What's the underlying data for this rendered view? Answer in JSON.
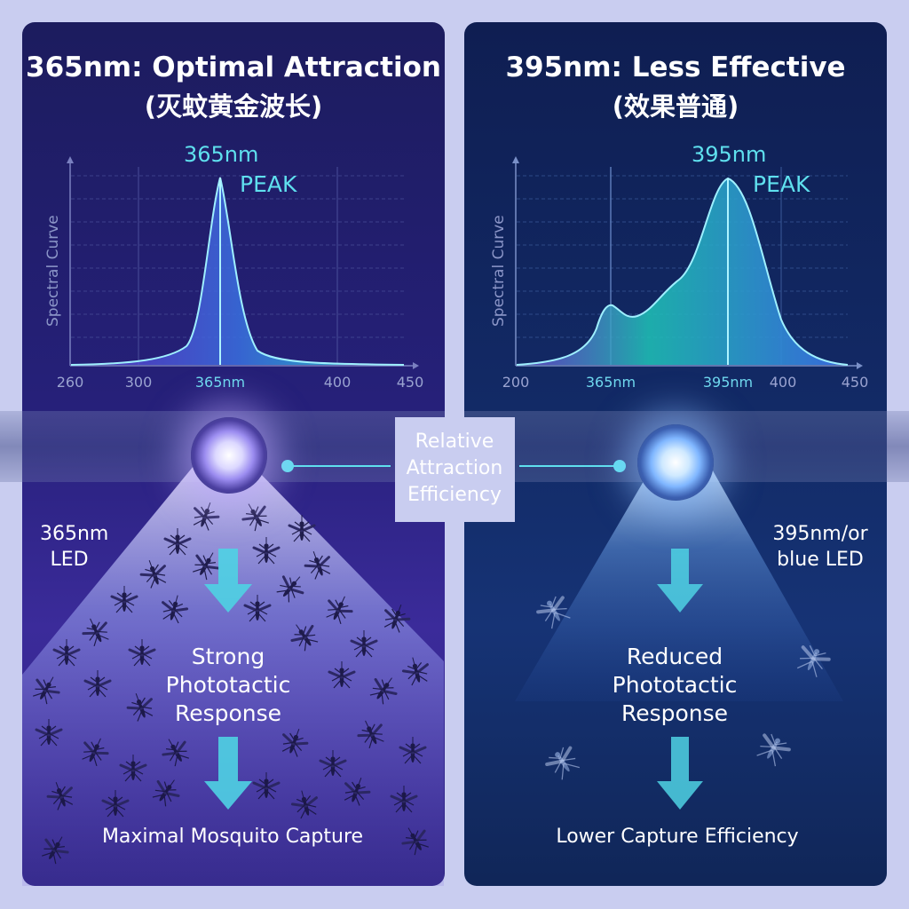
{
  "left": {
    "title": "365nm: Optimal Attraction",
    "subtitle": "(灭蚊黄金波长)",
    "peak_label": "365nm",
    "peak_word": "PEAK",
    "y_axis_label": "Spectral Curve",
    "ticks": [
      "260",
      "300",
      "365nm",
      "400",
      "450"
    ],
    "led_label_line1": "365nm",
    "led_label_line2": "LED",
    "response_line1": "Strong",
    "response_line2": "Phototactic",
    "response_line3": "Response",
    "outcome": "Maximal Mosquito Capture",
    "accent_color": "#8a5cf6"
  },
  "right": {
    "title": "395nm: Less Effective",
    "subtitle": "(效果普通)",
    "peak_label": "395nm",
    "peak_word": "PEAK",
    "y_axis_label": "Spectral Curve",
    "ticks": [
      "200",
      "365nm",
      "395nm",
      "400",
      "450"
    ],
    "led_label_line1": "395nm/or",
    "led_label_line2": "blue LED",
    "response_line1": "Reduced",
    "response_line2": "Phototactic",
    "response_line3": "Response",
    "outcome": "Lower Capture Efficiency",
    "accent_color": "#3d8cff"
  },
  "center": {
    "line1": "Relative",
    "line2": "Attraction",
    "line3": "Efficiency"
  },
  "colors": {
    "cyan": "#5fe0ee",
    "arrow": "#4fd2e4"
  }
}
